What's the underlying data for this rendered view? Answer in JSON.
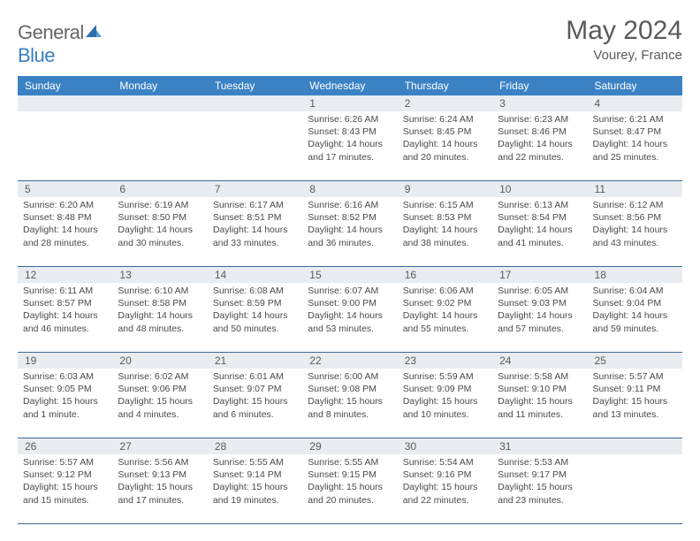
{
  "brand": {
    "part1": "General",
    "part2": "Blue"
  },
  "title": "May 2024",
  "location": "Vourey, France",
  "colors": {
    "header_bg": "#3b82c4",
    "header_text": "#ffffff",
    "daynum_bg": "#e9edf1",
    "border": "#3b6a9a",
    "text": "#4a4a4a",
    "brand_gray": "#666666",
    "brand_blue": "#3b7fbf"
  },
  "day_headers": [
    "Sunday",
    "Monday",
    "Tuesday",
    "Wednesday",
    "Thursday",
    "Friday",
    "Saturday"
  ],
  "weeks": [
    {
      "nums": [
        "",
        "",
        "",
        "1",
        "2",
        "3",
        "4"
      ],
      "cells": [
        null,
        null,
        null,
        {
          "sunrise": "Sunrise: 6:26 AM",
          "sunset": "Sunset: 8:43 PM",
          "day1": "Daylight: 14 hours",
          "day2": "and 17 minutes."
        },
        {
          "sunrise": "Sunrise: 6:24 AM",
          "sunset": "Sunset: 8:45 PM",
          "day1": "Daylight: 14 hours",
          "day2": "and 20 minutes."
        },
        {
          "sunrise": "Sunrise: 6:23 AM",
          "sunset": "Sunset: 8:46 PM",
          "day1": "Daylight: 14 hours",
          "day2": "and 22 minutes."
        },
        {
          "sunrise": "Sunrise: 6:21 AM",
          "sunset": "Sunset: 8:47 PM",
          "day1": "Daylight: 14 hours",
          "day2": "and 25 minutes."
        }
      ]
    },
    {
      "nums": [
        "5",
        "6",
        "7",
        "8",
        "9",
        "10",
        "11"
      ],
      "cells": [
        {
          "sunrise": "Sunrise: 6:20 AM",
          "sunset": "Sunset: 8:48 PM",
          "day1": "Daylight: 14 hours",
          "day2": "and 28 minutes."
        },
        {
          "sunrise": "Sunrise: 6:19 AM",
          "sunset": "Sunset: 8:50 PM",
          "day1": "Daylight: 14 hours",
          "day2": "and 30 minutes."
        },
        {
          "sunrise": "Sunrise: 6:17 AM",
          "sunset": "Sunset: 8:51 PM",
          "day1": "Daylight: 14 hours",
          "day2": "and 33 minutes."
        },
        {
          "sunrise": "Sunrise: 6:16 AM",
          "sunset": "Sunset: 8:52 PM",
          "day1": "Daylight: 14 hours",
          "day2": "and 36 minutes."
        },
        {
          "sunrise": "Sunrise: 6:15 AM",
          "sunset": "Sunset: 8:53 PM",
          "day1": "Daylight: 14 hours",
          "day2": "and 38 minutes."
        },
        {
          "sunrise": "Sunrise: 6:13 AM",
          "sunset": "Sunset: 8:54 PM",
          "day1": "Daylight: 14 hours",
          "day2": "and 41 minutes."
        },
        {
          "sunrise": "Sunrise: 6:12 AM",
          "sunset": "Sunset: 8:56 PM",
          "day1": "Daylight: 14 hours",
          "day2": "and 43 minutes."
        }
      ]
    },
    {
      "nums": [
        "12",
        "13",
        "14",
        "15",
        "16",
        "17",
        "18"
      ],
      "cells": [
        {
          "sunrise": "Sunrise: 6:11 AM",
          "sunset": "Sunset: 8:57 PM",
          "day1": "Daylight: 14 hours",
          "day2": "and 46 minutes."
        },
        {
          "sunrise": "Sunrise: 6:10 AM",
          "sunset": "Sunset: 8:58 PM",
          "day1": "Daylight: 14 hours",
          "day2": "and 48 minutes."
        },
        {
          "sunrise": "Sunrise: 6:08 AM",
          "sunset": "Sunset: 8:59 PM",
          "day1": "Daylight: 14 hours",
          "day2": "and 50 minutes."
        },
        {
          "sunrise": "Sunrise: 6:07 AM",
          "sunset": "Sunset: 9:00 PM",
          "day1": "Daylight: 14 hours",
          "day2": "and 53 minutes."
        },
        {
          "sunrise": "Sunrise: 6:06 AM",
          "sunset": "Sunset: 9:02 PM",
          "day1": "Daylight: 14 hours",
          "day2": "and 55 minutes."
        },
        {
          "sunrise": "Sunrise: 6:05 AM",
          "sunset": "Sunset: 9:03 PM",
          "day1": "Daylight: 14 hours",
          "day2": "and 57 minutes."
        },
        {
          "sunrise": "Sunrise: 6:04 AM",
          "sunset": "Sunset: 9:04 PM",
          "day1": "Daylight: 14 hours",
          "day2": "and 59 minutes."
        }
      ]
    },
    {
      "nums": [
        "19",
        "20",
        "21",
        "22",
        "23",
        "24",
        "25"
      ],
      "cells": [
        {
          "sunrise": "Sunrise: 6:03 AM",
          "sunset": "Sunset: 9:05 PM",
          "day1": "Daylight: 15 hours",
          "day2": "and 1 minute."
        },
        {
          "sunrise": "Sunrise: 6:02 AM",
          "sunset": "Sunset: 9:06 PM",
          "day1": "Daylight: 15 hours",
          "day2": "and 4 minutes."
        },
        {
          "sunrise": "Sunrise: 6:01 AM",
          "sunset": "Sunset: 9:07 PM",
          "day1": "Daylight: 15 hours",
          "day2": "and 6 minutes."
        },
        {
          "sunrise": "Sunrise: 6:00 AM",
          "sunset": "Sunset: 9:08 PM",
          "day1": "Daylight: 15 hours",
          "day2": "and 8 minutes."
        },
        {
          "sunrise": "Sunrise: 5:59 AM",
          "sunset": "Sunset: 9:09 PM",
          "day1": "Daylight: 15 hours",
          "day2": "and 10 minutes."
        },
        {
          "sunrise": "Sunrise: 5:58 AM",
          "sunset": "Sunset: 9:10 PM",
          "day1": "Daylight: 15 hours",
          "day2": "and 11 minutes."
        },
        {
          "sunrise": "Sunrise: 5:57 AM",
          "sunset": "Sunset: 9:11 PM",
          "day1": "Daylight: 15 hours",
          "day2": "and 13 minutes."
        }
      ]
    },
    {
      "nums": [
        "26",
        "27",
        "28",
        "29",
        "30",
        "31",
        ""
      ],
      "cells": [
        {
          "sunrise": "Sunrise: 5:57 AM",
          "sunset": "Sunset: 9:12 PM",
          "day1": "Daylight: 15 hours",
          "day2": "and 15 minutes."
        },
        {
          "sunrise": "Sunrise: 5:56 AM",
          "sunset": "Sunset: 9:13 PM",
          "day1": "Daylight: 15 hours",
          "day2": "and 17 minutes."
        },
        {
          "sunrise": "Sunrise: 5:55 AM",
          "sunset": "Sunset: 9:14 PM",
          "day1": "Daylight: 15 hours",
          "day2": "and 19 minutes."
        },
        {
          "sunrise": "Sunrise: 5:55 AM",
          "sunset": "Sunset: 9:15 PM",
          "day1": "Daylight: 15 hours",
          "day2": "and 20 minutes."
        },
        {
          "sunrise": "Sunrise: 5:54 AM",
          "sunset": "Sunset: 9:16 PM",
          "day1": "Daylight: 15 hours",
          "day2": "and 22 minutes."
        },
        {
          "sunrise": "Sunrise: 5:53 AM",
          "sunset": "Sunset: 9:17 PM",
          "day1": "Daylight: 15 hours",
          "day2": "and 23 minutes."
        },
        null
      ]
    }
  ]
}
